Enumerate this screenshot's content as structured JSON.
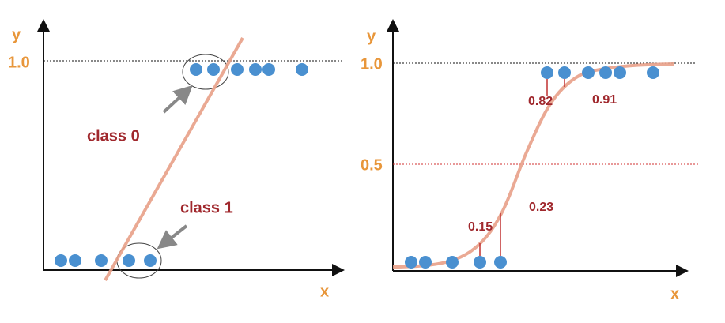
{
  "left": {
    "y_label": "y",
    "x_label": "x",
    "y_tick": "1.0",
    "annotations": [
      "class 0",
      "class 1"
    ]
  },
  "right": {
    "y_label": "y",
    "x_label": "x",
    "y_ticks": [
      "1.0",
      "0.5"
    ],
    "probabilities": [
      "0.82",
      "0.91",
      "0.23",
      "0.15"
    ]
  }
}
